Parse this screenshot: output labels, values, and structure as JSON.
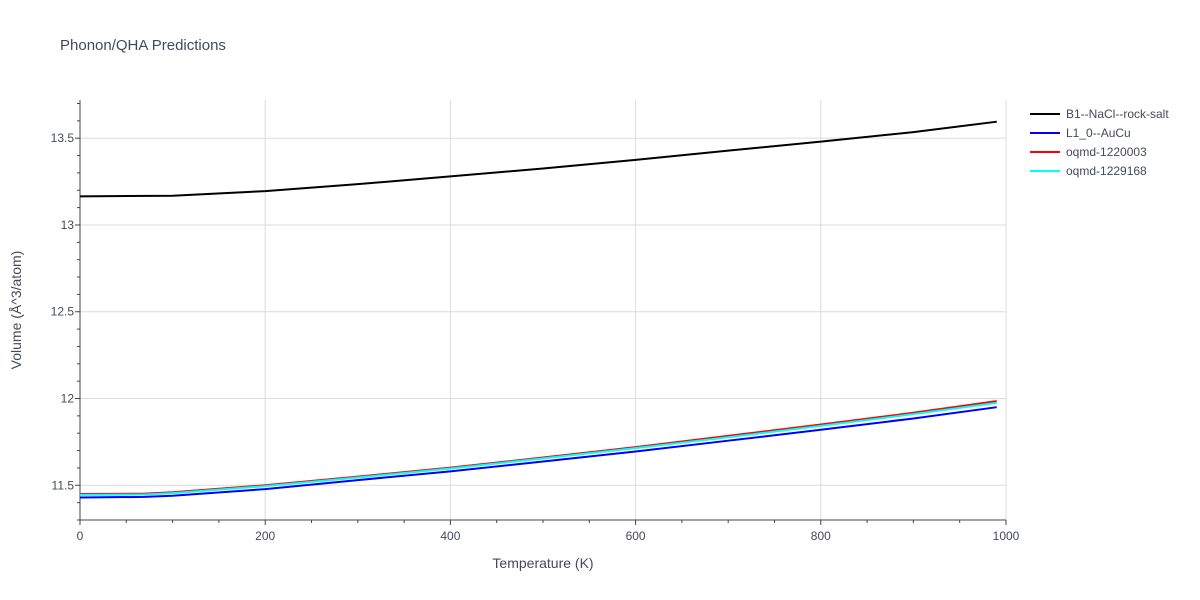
{
  "chart_data": {
    "type": "line",
    "title": "Phonon/QHA Predictions",
    "xlabel": "Temperature (K)",
    "ylabel": "Volume (Å^3/atom)",
    "xlim": [
      0,
      1000
    ],
    "ylim": [
      11.3,
      13.72
    ],
    "x_ticks": [
      0,
      200,
      400,
      600,
      800,
      1000
    ],
    "x_tick_labels": [
      "0",
      "200",
      "400",
      "600",
      "800",
      "1000"
    ],
    "y_ticks": [
      11.5,
      12,
      12.5,
      13,
      13.5
    ],
    "y_tick_labels": [
      "11.5",
      "12",
      "12.5",
      "13",
      "13.5"
    ],
    "grid": true,
    "legend_position": "top-right",
    "series": [
      {
        "name": "B1--NaCl--rock-salt",
        "color": "#000000",
        "x": [
          0,
          100,
          200,
          300,
          400,
          500,
          600,
          700,
          800,
          900,
          990
        ],
        "y": [
          13.165,
          13.168,
          13.195,
          13.235,
          13.28,
          13.325,
          13.375,
          13.428,
          13.48,
          13.535,
          13.595
        ]
      },
      {
        "name": "L1_0--AuCu",
        "color": "#0000ff",
        "x": [
          0,
          70,
          100,
          200,
          300,
          400,
          500,
          600,
          700,
          800,
          900,
          990
        ],
        "y": [
          11.43,
          11.433,
          11.44,
          11.478,
          11.53,
          11.58,
          11.637,
          11.695,
          11.757,
          11.82,
          11.885,
          11.95
        ]
      },
      {
        "name": "oqmd-1220003",
        "color": "#ff0000",
        "x": [
          0,
          70,
          100,
          200,
          300,
          400,
          500,
          600,
          700,
          800,
          900,
          990
        ],
        "y": [
          11.45,
          11.452,
          11.46,
          11.5,
          11.55,
          11.602,
          11.66,
          11.72,
          11.785,
          11.85,
          11.918,
          11.985
        ]
      },
      {
        "name": "oqmd-1229168",
        "color": "#00ffff",
        "x": [
          0,
          70,
          100,
          200,
          300,
          400,
          500,
          600,
          700,
          800,
          900,
          990
        ],
        "y": [
          11.445,
          11.447,
          11.455,
          11.495,
          11.545,
          11.597,
          11.655,
          11.714,
          11.777,
          11.842,
          11.91,
          11.975
        ]
      }
    ]
  }
}
